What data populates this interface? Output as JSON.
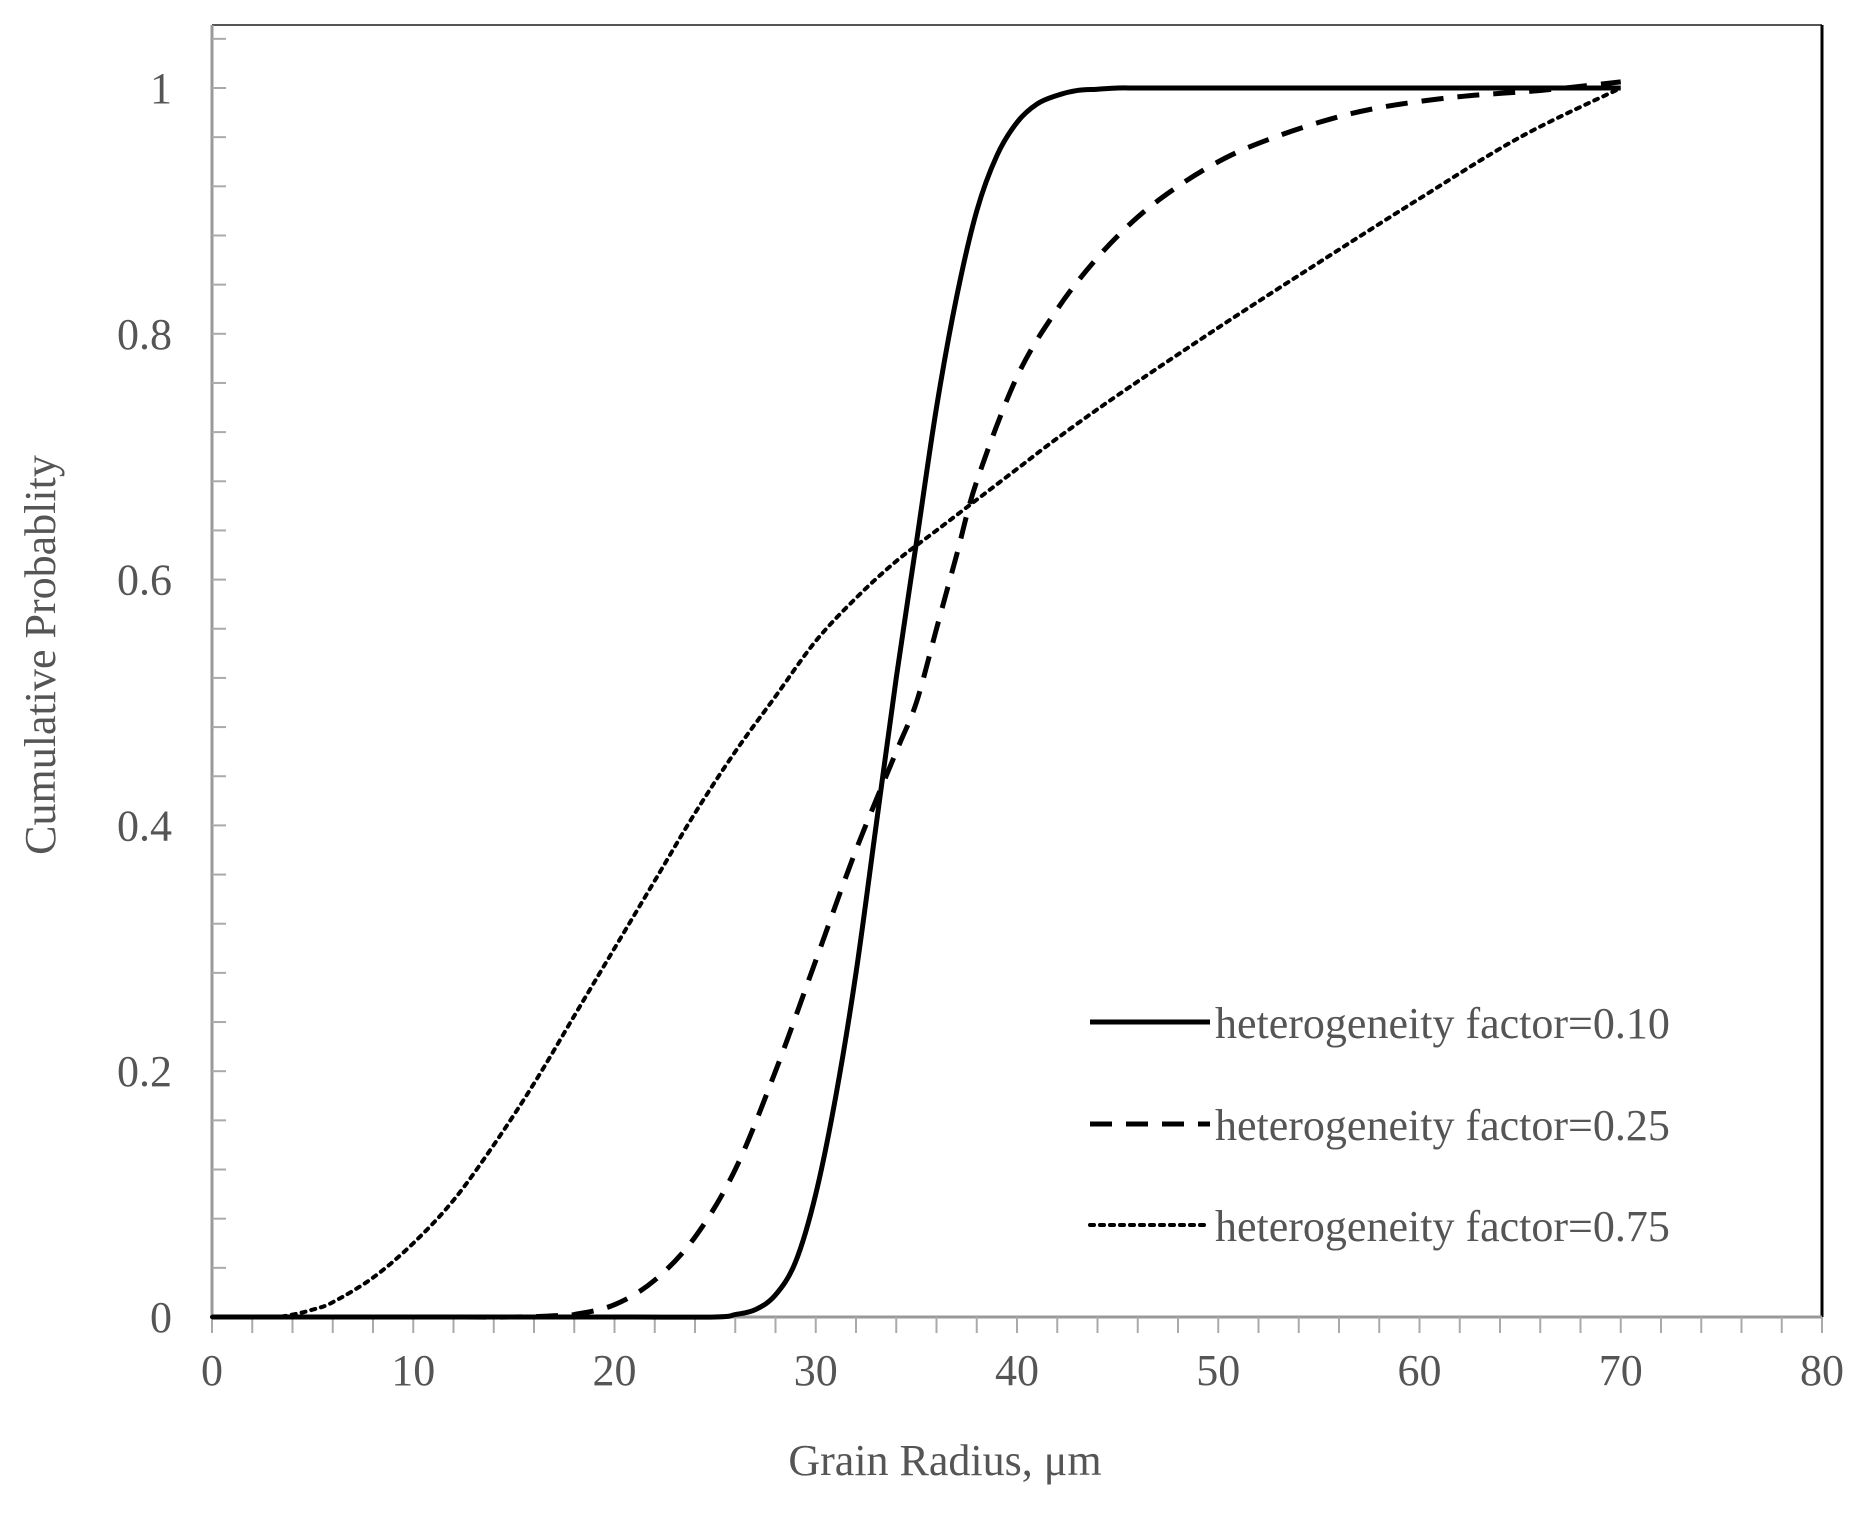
{
  "chart_data": {
    "type": "line",
    "xlabel": "Grain Radius, μm",
    "ylabel": "Cumulative Probablity",
    "xlim": [
      0,
      80
    ],
    "ylim": [
      0,
      1.05
    ],
    "x_ticks": [
      0,
      10,
      20,
      30,
      40,
      50,
      60,
      70,
      80
    ],
    "x_tick_labels": [
      "0",
      "10",
      "20",
      "30",
      "40",
      "50",
      "60",
      "70",
      "80"
    ],
    "y_ticks": [
      0,
      0.2,
      0.4,
      0.6,
      0.8,
      1
    ],
    "y_tick_labels": [
      "0",
      "0.2",
      "0.4",
      "0.6",
      "0.8",
      "1"
    ],
    "grid": false,
    "legend_position": "bottom-right",
    "series": [
      {
        "name": "heterogeneity factor=0.10",
        "line_style": "solid",
        "color": "#000000",
        "x": [
          0,
          10,
          20,
          25,
          26,
          27,
          28,
          29,
          30,
          31,
          32,
          33,
          34,
          35,
          36,
          37,
          38,
          39,
          40,
          41,
          42,
          43,
          44,
          45,
          46,
          48,
          50,
          60,
          70
        ],
        "y": [
          0,
          0,
          0,
          0.0,
          0.002,
          0.006,
          0.018,
          0.045,
          0.1,
          0.18,
          0.28,
          0.4,
          0.52,
          0.63,
          0.74,
          0.83,
          0.9,
          0.945,
          0.972,
          0.987,
          0.994,
          0.998,
          0.999,
          1.0,
          1.0,
          1.0,
          1.0,
          1.0,
          1.0
        ]
      },
      {
        "name": "heterogeneity factor=0.25",
        "line_style": "dashed",
        "color": "#000000",
        "x": [
          0,
          10,
          15,
          17,
          18,
          20,
          22,
          24,
          26,
          28,
          30,
          32,
          34,
          35,
          36,
          37,
          38,
          40,
          42,
          44,
          46,
          48,
          50,
          52,
          55,
          58,
          62,
          66,
          70
        ],
        "y": [
          0,
          0,
          0.0,
          0.001,
          0.002,
          0.01,
          0.03,
          0.065,
          0.12,
          0.2,
          0.29,
          0.38,
          0.46,
          0.5,
          0.56,
          0.62,
          0.68,
          0.765,
          0.82,
          0.862,
          0.895,
          0.92,
          0.94,
          0.955,
          0.972,
          0.984,
          0.993,
          0.998,
          1.005
        ]
      },
      {
        "name": "heterogeneity factor=0.75",
        "line_style": "dotted",
        "color": "#000000",
        "x": [
          0,
          3,
          4,
          5,
          6,
          8,
          10,
          12,
          14,
          16,
          18,
          20,
          22,
          24,
          26,
          28,
          30,
          32,
          34,
          36,
          38,
          40,
          42,
          45,
          50,
          55,
          60,
          65,
          70
        ],
        "y": [
          0,
          0,
          0.002,
          0.006,
          0.012,
          0.032,
          0.06,
          0.095,
          0.14,
          0.19,
          0.245,
          0.3,
          0.355,
          0.41,
          0.46,
          0.505,
          0.55,
          0.585,
          0.615,
          0.64,
          0.665,
          0.69,
          0.715,
          0.75,
          0.805,
          0.858,
          0.91,
          0.96,
          1.0
        ]
      }
    ]
  }
}
